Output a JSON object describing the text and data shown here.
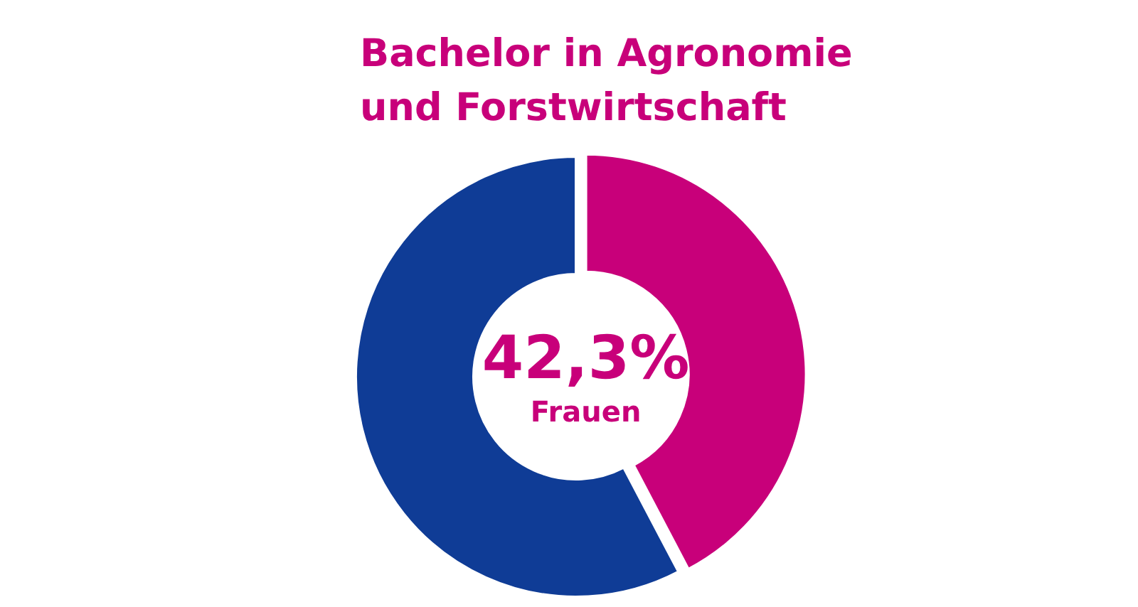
{
  "chart_data": {
    "type": "donut",
    "title": "Bachelor in Agronomie\nund Forstwirtschaft",
    "categories": [
      "Frauen",
      null
    ],
    "values": [
      42.3,
      57.7
    ],
    "colors": [
      "#c8007a",
      "#0f3c96"
    ],
    "value_labels": [
      "42,3%",
      null
    ]
  }
}
